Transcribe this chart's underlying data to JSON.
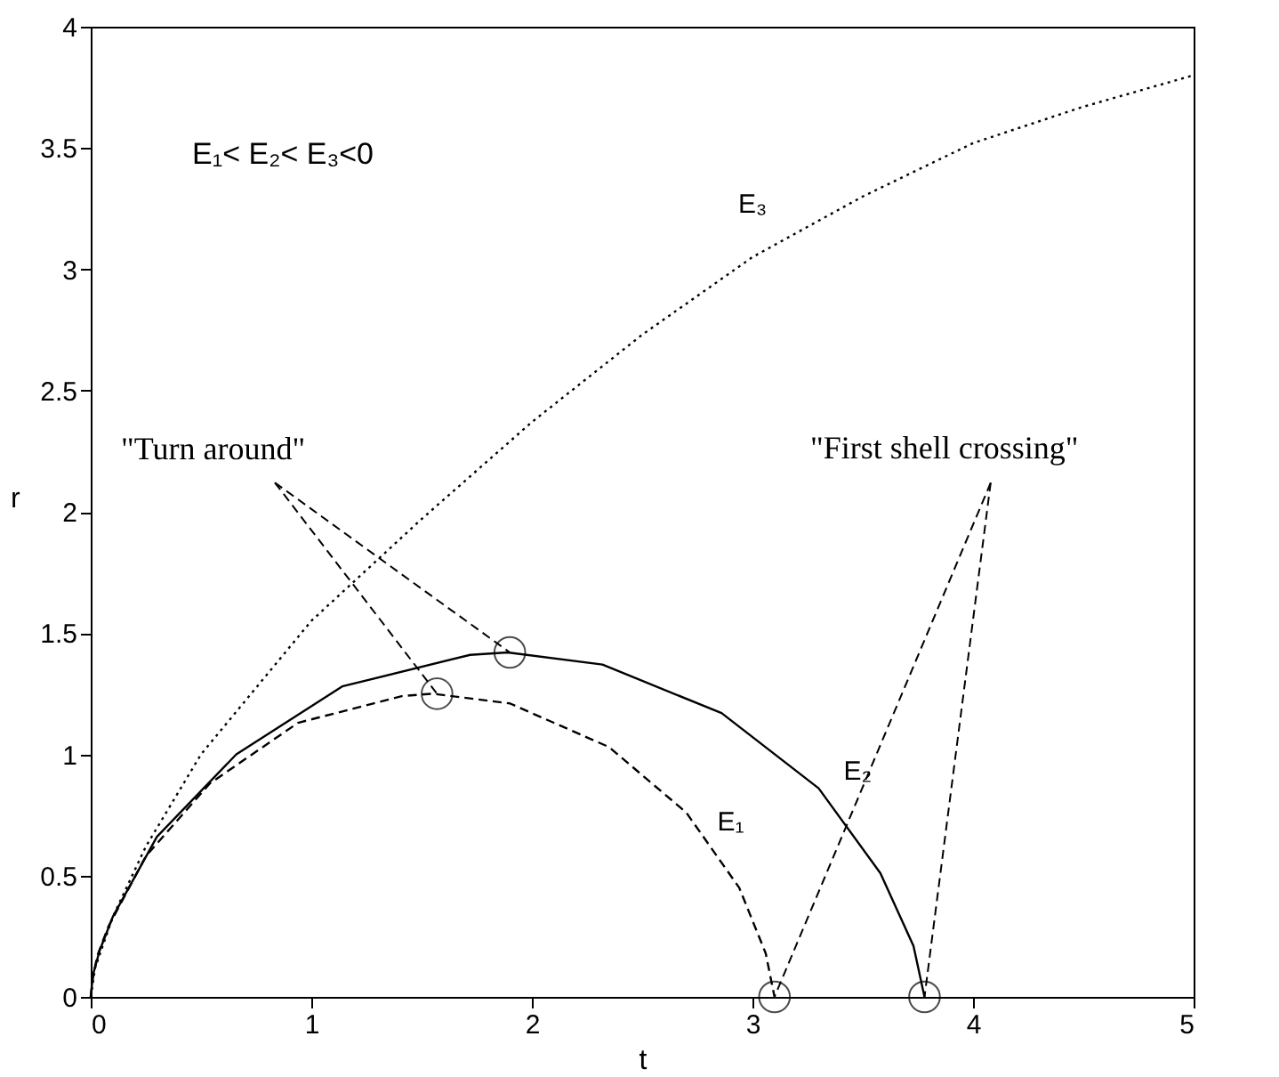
{
  "chart_data": {
    "type": "line",
    "xlabel": "t",
    "ylabel": "r",
    "xlim": [
      0,
      5
    ],
    "ylim": [
      0,
      4
    ],
    "xticks": [
      0,
      1,
      2,
      3,
      4,
      5
    ],
    "yticks": [
      0,
      0.5,
      1,
      1.5,
      2,
      2.5,
      3,
      3.5,
      4
    ],
    "grid": false,
    "series": [
      {
        "name": "E₁",
        "color": "#000000",
        "line_style": "dashed",
        "marker": "none",
        "x": [
          0,
          0.01,
          0.03,
          0.08,
          0.25,
          0.54,
          0.94,
          1.41,
          1.55,
          1.9,
          2.35,
          2.7,
          2.94,
          3.06,
          3.1
        ],
        "values": [
          0,
          0.08,
          0.17,
          0.29,
          0.58,
          0.88,
          1.13,
          1.24,
          1.25,
          1.21,
          1.03,
          0.76,
          0.45,
          0.18,
          0
        ]
      },
      {
        "name": "E₂",
        "color": "#000000",
        "line_style": "solid",
        "marker": "none",
        "x": [
          0,
          0.01,
          0.04,
          0.1,
          0.3,
          0.66,
          1.14,
          1.72,
          1.89,
          2.32,
          2.86,
          3.3,
          3.58,
          3.73,
          3.78
        ],
        "values": [
          0,
          0.09,
          0.19,
          0.33,
          0.66,
          1.0,
          1.28,
          1.41,
          1.42,
          1.37,
          1.17,
          0.86,
          0.51,
          0.21,
          0
        ]
      },
      {
        "name": "E₃",
        "color": "#000000",
        "line_style": "dotted",
        "marker": "none",
        "x": [
          0,
          0.02,
          0.1,
          0.25,
          0.5,
          1,
          1.5,
          2,
          2.5,
          3,
          3.5,
          4,
          4.5,
          5
        ],
        "values": [
          0,
          0.12,
          0.33,
          0.62,
          1.0,
          1.55,
          1.97,
          2.37,
          2.73,
          3.05,
          3.3,
          3.52,
          3.67,
          3.8
        ]
      },
      {
        "type": "scatter",
        "color": "#000000",
        "marker": "circle",
        "x": [
          1.57,
          1.9,
          3.1,
          3.78
        ],
        "values": [
          1.25,
          1.42,
          0,
          0
        ]
      }
    ],
    "annotations": [
      "E₁< E₂< E₃<0",
      {
        "text": "\"Turn around\"",
        "x": 1.57,
        "y": 1.25
      },
      {
        "text": "\"First shell crossing\"",
        "x": 3.1,
        "y": 0
      }
    ]
  }
}
